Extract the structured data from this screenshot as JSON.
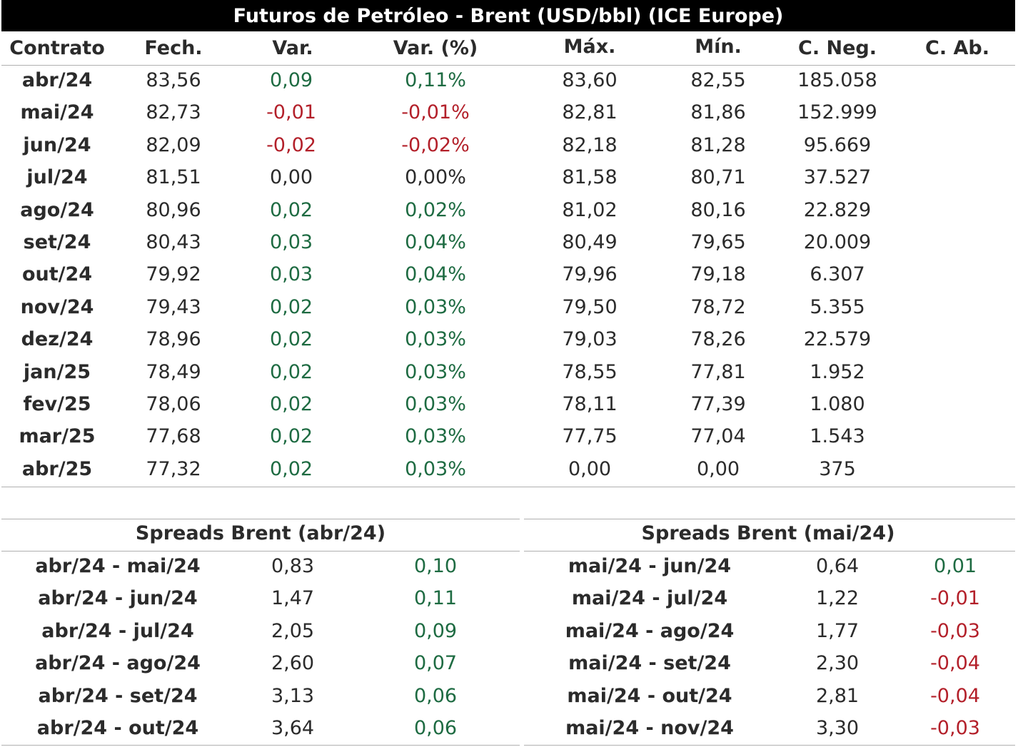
{
  "title": "Futuros de Petróleo - Brent (USD/bbl) (ICE Europe)",
  "headers": [
    "Contrato",
    "Fech.",
    "Var.",
    "Var. (%)",
    "Máx.",
    "Mín.",
    "C. Neg.",
    "C. Ab."
  ],
  "rows": [
    {
      "contract": "abr/24",
      "close": "83,56",
      "var": "0,09",
      "var_pct": "0,11%",
      "max": "83,60",
      "min": "82,55",
      "neg": "185.058",
      "ab": "",
      "sign": "pos"
    },
    {
      "contract": "mai/24",
      "close": "82,73",
      "var": "-0,01",
      "var_pct": "-0,01%",
      "max": "82,81",
      "min": "81,86",
      "neg": "152.999",
      "ab": "",
      "sign": "neg"
    },
    {
      "contract": "jun/24",
      "close": "82,09",
      "var": "-0,02",
      "var_pct": "-0,02%",
      "max": "82,18",
      "min": "81,28",
      "neg": "95.669",
      "ab": "",
      "sign": "neg"
    },
    {
      "contract": "jul/24",
      "close": "81,51",
      "var": "0,00",
      "var_pct": "0,00%",
      "max": "81,58",
      "min": "80,71",
      "neg": "37.527",
      "ab": "",
      "sign": "zero"
    },
    {
      "contract": "ago/24",
      "close": "80,96",
      "var": "0,02",
      "var_pct": "0,02%",
      "max": "81,02",
      "min": "80,16",
      "neg": "22.829",
      "ab": "",
      "sign": "pos"
    },
    {
      "contract": "set/24",
      "close": "80,43",
      "var": "0,03",
      "var_pct": "0,04%",
      "max": "80,49",
      "min": "79,65",
      "neg": "20.009",
      "ab": "",
      "sign": "pos"
    },
    {
      "contract": "out/24",
      "close": "79,92",
      "var": "0,03",
      "var_pct": "0,04%",
      "max": "79,96",
      "min": "79,18",
      "neg": "6.307",
      "ab": "",
      "sign": "pos"
    },
    {
      "contract": "nov/24",
      "close": "79,43",
      "var": "0,02",
      "var_pct": "0,03%",
      "max": "79,50",
      "min": "78,72",
      "neg": "5.355",
      "ab": "",
      "sign": "pos"
    },
    {
      "contract": "dez/24",
      "close": "78,96",
      "var": "0,02",
      "var_pct": "0,03%",
      "max": "79,03",
      "min": "78,26",
      "neg": "22.579",
      "ab": "",
      "sign": "pos"
    },
    {
      "contract": "jan/25",
      "close": "78,49",
      "var": "0,02",
      "var_pct": "0,03%",
      "max": "78,55",
      "min": "77,81",
      "neg": "1.952",
      "ab": "",
      "sign": "pos"
    },
    {
      "contract": "fev/25",
      "close": "78,06",
      "var": "0,02",
      "var_pct": "0,03%",
      "max": "78,11",
      "min": "77,39",
      "neg": "1.080",
      "ab": "",
      "sign": "pos"
    },
    {
      "contract": "mar/25",
      "close": "77,68",
      "var": "0,02",
      "var_pct": "0,03%",
      "max": "77,75",
      "min": "77,04",
      "neg": "1.543",
      "ab": "",
      "sign": "pos"
    },
    {
      "contract": "abr/25",
      "close": "77,32",
      "var": "0,02",
      "var_pct": "0,03%",
      "max": "0,00",
      "min": "0,00",
      "neg": "375",
      "ab": "",
      "sign": "pos"
    }
  ],
  "spreads_left": {
    "title": "Spreads Brent (abr/24)",
    "rows": [
      {
        "name": "abr/24 - mai/24",
        "value": "0,83",
        "change": "0,10",
        "sign": "pos"
      },
      {
        "name": "abr/24 - jun/24",
        "value": "1,47",
        "change": "0,11",
        "sign": "pos"
      },
      {
        "name": "abr/24 - jul/24",
        "value": "2,05",
        "change": "0,09",
        "sign": "pos"
      },
      {
        "name": "abr/24 - ago/24",
        "value": "2,60",
        "change": "0,07",
        "sign": "pos"
      },
      {
        "name": "abr/24 - set/24",
        "value": "3,13",
        "change": "0,06",
        "sign": "pos"
      },
      {
        "name": "abr/24 - out/24",
        "value": "3,64",
        "change": "0,06",
        "sign": "pos"
      }
    ]
  },
  "spreads_right": {
    "title": "Spreads Brent (mai/24)",
    "rows": [
      {
        "name": "mai/24 - jun/24",
        "value": "0,64",
        "change": "0,01",
        "sign": "pos"
      },
      {
        "name": "mai/24 - jul/24",
        "value": "1,22",
        "change": "-0,01",
        "sign": "neg"
      },
      {
        "name": "mai/24 - ago/24",
        "value": "1,77",
        "change": "-0,03",
        "sign": "neg"
      },
      {
        "name": "mai/24 - set/24",
        "value": "2,30",
        "change": "-0,04",
        "sign": "neg"
      },
      {
        "name": "mai/24 - out/24",
        "value": "2,81",
        "change": "-0,04",
        "sign": "neg"
      },
      {
        "name": "mai/24 - nov/24",
        "value": "3,30",
        "change": "-0,03",
        "sign": "neg"
      }
    ]
  }
}
